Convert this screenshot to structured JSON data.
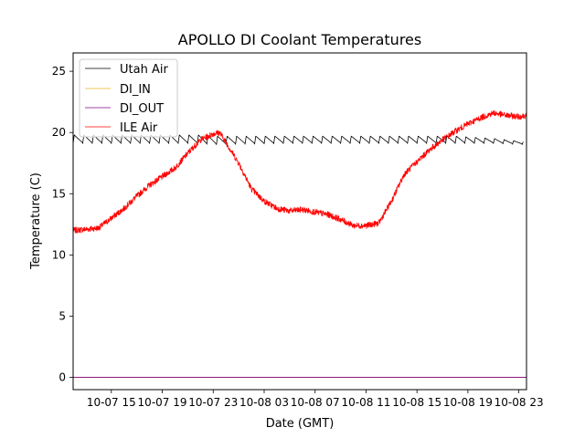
{
  "chart_data": {
    "type": "line",
    "title": "APOLLO DI Coolant Temperatures",
    "xlabel": "Date (GMT)",
    "ylabel": "Temperature (C)",
    "x_unit": "hours since 10-07 12:00 GMT",
    "xlim": [
      0,
      35.6
    ],
    "ylim": [
      -1.0,
      26.5
    ],
    "y_ticks": [
      0,
      5,
      10,
      15,
      20,
      25
    ],
    "x_ticks": [
      {
        "value": 3,
        "label": "10-07 15"
      },
      {
        "value": 7,
        "label": "10-07 19"
      },
      {
        "value": 11,
        "label": "10-07 23"
      },
      {
        "value": 15,
        "label": "10-08 03"
      },
      {
        "value": 19,
        "label": "10-08 07"
      },
      {
        "value": 23,
        "label": "10-08 11"
      },
      {
        "value": 27,
        "label": "10-08 15"
      },
      {
        "value": 31,
        "label": "10-08 19"
      },
      {
        "value": 35,
        "label": "10-08 23"
      }
    ],
    "legend_position": "top-left",
    "series": [
      {
        "name": "Utah Air",
        "color": "#000000",
        "pattern": "sawtooth",
        "cycle_hours": 0.75,
        "x": [
          0,
          10,
          10.8,
          17,
          21,
          25,
          30,
          33,
          35.6
        ],
        "base": [
          19.1,
          19.1,
          19.0,
          19.1,
          19.1,
          19.1,
          19.1,
          19.1,
          19.0
        ],
        "peak": [
          19.8,
          19.8,
          19.7,
          19.7,
          19.7,
          19.7,
          19.7,
          19.5,
          19.2
        ]
      },
      {
        "name": "DI_IN",
        "color": "#e6b31e",
        "x": [
          0,
          35.6
        ],
        "y": [
          0,
          0
        ]
      },
      {
        "name": "DI_OUT",
        "color": "#800080",
        "x": [
          0,
          35.6
        ],
        "y": [
          0,
          0
        ]
      },
      {
        "name": "ILE Air",
        "color": "#ff0000",
        "pattern": "noisy",
        "x": [
          0,
          1,
          2,
          3,
          4,
          5,
          6,
          7,
          8,
          9,
          10,
          11,
          11.5,
          12,
          13,
          14,
          15,
          16,
          17,
          18,
          19,
          20,
          21,
          22,
          23,
          24,
          25,
          26,
          27,
          28,
          29,
          30,
          31,
          32,
          33,
          34,
          35,
          35.6
        ],
        "y": [
          12.0,
          12.1,
          12.2,
          13.0,
          13.8,
          14.8,
          15.7,
          16.4,
          17.1,
          18.3,
          19.4,
          19.9,
          20.0,
          19.2,
          17.5,
          15.4,
          14.4,
          13.8,
          13.6,
          13.7,
          13.5,
          13.3,
          12.9,
          12.4,
          12.4,
          12.6,
          14.4,
          16.6,
          17.6,
          18.6,
          19.4,
          20.1,
          20.7,
          21.2,
          21.6,
          21.4,
          21.3,
          21.4
        ]
      }
    ]
  }
}
